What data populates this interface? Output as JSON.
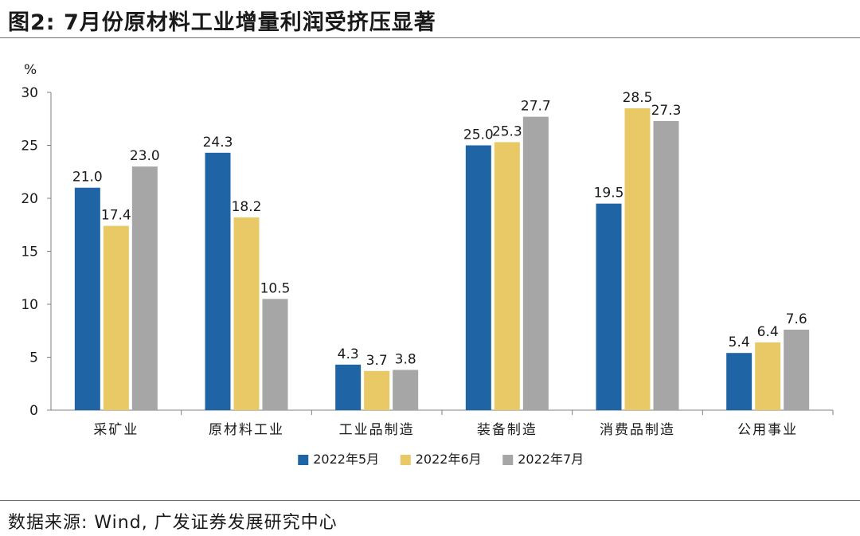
{
  "header": {
    "title": "图2: 7月份原材料工业增量利润受挤压显著"
  },
  "footer": {
    "source": "数据来源: Wind, 广发证券发展研究中心"
  },
  "chart_data": {
    "type": "bar",
    "title": "图2: 7月份原材料工业增量利润受挤压显著",
    "ylabel": "%",
    "xlabel": "",
    "ylim": [
      0,
      30
    ],
    "yticks": [
      0,
      5,
      10,
      15,
      20,
      25,
      30
    ],
    "grid": false,
    "legend_position": "bottom",
    "categories": [
      "采矿业",
      "原材料工业",
      "工业品制造",
      "装备制造",
      "消费品制造",
      "公用事业"
    ],
    "series": [
      {
        "name": "2022年5月",
        "color": "#1f65a6",
        "values": [
          21.0,
          24.3,
          4.3,
          25.0,
          19.5,
          5.4
        ]
      },
      {
        "name": "2022年6月",
        "color": "#e9c866",
        "values": [
          17.4,
          18.2,
          3.7,
          25.3,
          28.5,
          6.4
        ]
      },
      {
        "name": "2022年7月",
        "color": "#a6a6a6",
        "values": [
          23.0,
          10.5,
          3.8,
          27.7,
          27.3,
          7.6
        ]
      }
    ]
  }
}
